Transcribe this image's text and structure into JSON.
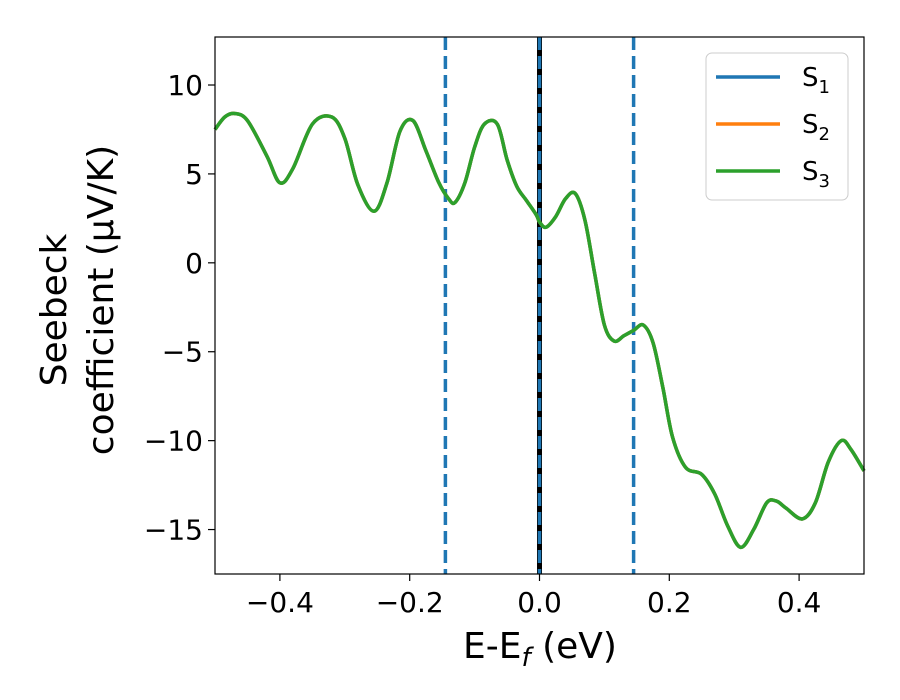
{
  "chart_data": {
    "type": "line",
    "title": "",
    "xlabel_main": "E-E",
    "xlabel_sub": "f",
    "xlabel_unit": " (eV)",
    "ylabel_line1": "Seebeck",
    "ylabel_line2": "coefficient  (μV/K)",
    "xlim": [
      -0.5,
      0.5
    ],
    "ylim": [
      -17.5,
      12.7
    ],
    "x_ticks": [
      -0.4,
      -0.2,
      0.0,
      0.2,
      0.4
    ],
    "x_tick_labels": [
      "−0.4",
      "−0.2",
      "0.0",
      "0.2",
      "0.4"
    ],
    "y_ticks": [
      -15,
      -10,
      -5,
      0,
      5,
      10
    ],
    "y_tick_labels": [
      "−15",
      "−10",
      "−5",
      "0",
      "5",
      "10"
    ],
    "grid": false,
    "legend_position": "top-right",
    "series": [
      {
        "name": "S",
        "subscript": "1",
        "color": "#1f77b4",
        "x": [
          -0.5,
          -0.485,
          -0.47,
          -0.45,
          -0.42,
          -0.4,
          -0.38,
          -0.35,
          -0.32,
          -0.3,
          -0.28,
          -0.255,
          -0.235,
          -0.215,
          -0.195,
          -0.175,
          -0.155,
          -0.14,
          -0.13,
          -0.115,
          -0.1,
          -0.085,
          -0.065,
          -0.05,
          -0.035,
          -0.02,
          -0.005,
          0.0,
          0.01,
          0.025,
          0.04,
          0.055,
          0.07,
          0.085,
          0.1,
          0.115,
          0.13,
          0.145,
          0.16,
          0.175,
          0.19,
          0.205,
          0.225,
          0.25,
          0.27,
          0.29,
          0.31,
          0.33,
          0.35,
          0.365,
          0.38,
          0.405,
          0.425,
          0.445,
          0.465,
          0.48,
          0.5
        ],
        "y": [
          7.5,
          8.2,
          8.4,
          8.0,
          6.0,
          4.5,
          5.3,
          7.8,
          8.2,
          7.0,
          4.4,
          2.9,
          4.5,
          7.4,
          8.0,
          6.3,
          4.5,
          3.6,
          3.4,
          4.5,
          6.5,
          7.8,
          7.8,
          5.8,
          4.3,
          3.5,
          2.7,
          2.3,
          2.0,
          2.6,
          3.6,
          3.9,
          2.4,
          -0.6,
          -3.5,
          -4.4,
          -4.1,
          -3.8,
          -3.5,
          -4.5,
          -7.0,
          -9.8,
          -11.5,
          -11.9,
          -13.0,
          -14.8,
          -16.0,
          -15.0,
          -13.5,
          -13.4,
          -13.8,
          -14.4,
          -13.5,
          -11.2,
          -10.0,
          -10.5,
          -11.7
        ]
      },
      {
        "name": "S",
        "subscript": "2",
        "color": "#ff7f0e",
        "x": [
          -0.5,
          -0.485,
          -0.47,
          -0.45,
          -0.42,
          -0.4,
          -0.38,
          -0.35,
          -0.32,
          -0.3,
          -0.28,
          -0.255,
          -0.235,
          -0.215,
          -0.195,
          -0.175,
          -0.155,
          -0.14,
          -0.13,
          -0.115,
          -0.1,
          -0.085,
          -0.065,
          -0.05,
          -0.035,
          -0.02,
          -0.005,
          0.0,
          0.01,
          0.025,
          0.04,
          0.055,
          0.07,
          0.085,
          0.1,
          0.115,
          0.13,
          0.145,
          0.16,
          0.175,
          0.19,
          0.205,
          0.225,
          0.25,
          0.27,
          0.29,
          0.31,
          0.33,
          0.35,
          0.365,
          0.38,
          0.405,
          0.425,
          0.445,
          0.465,
          0.48,
          0.5
        ],
        "y": [
          7.5,
          8.2,
          8.4,
          8.0,
          6.0,
          4.5,
          5.3,
          7.8,
          8.2,
          7.0,
          4.4,
          2.9,
          4.5,
          7.4,
          8.0,
          6.3,
          4.5,
          3.6,
          3.4,
          4.5,
          6.5,
          7.8,
          7.8,
          5.8,
          4.3,
          3.5,
          2.7,
          2.3,
          2.0,
          2.6,
          3.6,
          3.9,
          2.4,
          -0.6,
          -3.5,
          -4.4,
          -4.1,
          -3.8,
          -3.5,
          -4.5,
          -7.0,
          -9.8,
          -11.5,
          -11.9,
          -13.0,
          -14.8,
          -16.0,
          -15.0,
          -13.5,
          -13.4,
          -13.8,
          -14.4,
          -13.5,
          -11.2,
          -10.0,
          -10.5,
          -11.7
        ]
      },
      {
        "name": "S",
        "subscript": "3",
        "color": "#2ca02c",
        "x": [
          -0.5,
          -0.485,
          -0.47,
          -0.45,
          -0.42,
          -0.4,
          -0.38,
          -0.35,
          -0.32,
          -0.3,
          -0.28,
          -0.255,
          -0.235,
          -0.215,
          -0.195,
          -0.175,
          -0.155,
          -0.14,
          -0.13,
          -0.115,
          -0.1,
          -0.085,
          -0.065,
          -0.05,
          -0.035,
          -0.02,
          -0.005,
          0.0,
          0.01,
          0.025,
          0.04,
          0.055,
          0.07,
          0.085,
          0.1,
          0.115,
          0.13,
          0.145,
          0.16,
          0.175,
          0.19,
          0.205,
          0.225,
          0.25,
          0.27,
          0.29,
          0.31,
          0.33,
          0.35,
          0.365,
          0.38,
          0.405,
          0.425,
          0.445,
          0.465,
          0.48,
          0.5
        ],
        "y": [
          7.5,
          8.2,
          8.4,
          8.0,
          6.0,
          4.5,
          5.3,
          7.8,
          8.2,
          7.0,
          4.4,
          2.9,
          4.5,
          7.4,
          8.0,
          6.3,
          4.5,
          3.6,
          3.4,
          4.5,
          6.5,
          7.8,
          7.8,
          5.8,
          4.3,
          3.5,
          2.7,
          2.3,
          2.0,
          2.6,
          3.6,
          3.9,
          2.4,
          -0.6,
          -3.5,
          -4.4,
          -4.1,
          -3.8,
          -3.5,
          -4.5,
          -7.0,
          -9.8,
          -11.5,
          -11.9,
          -13.0,
          -14.8,
          -16.0,
          -15.0,
          -13.5,
          -13.4,
          -13.8,
          -14.4,
          -13.5,
          -11.2,
          -10.0,
          -10.5,
          -11.7
        ]
      }
    ],
    "vertical_lines": [
      {
        "x": -0.145,
        "color": "#1f77b4",
        "style": "dashed"
      },
      {
        "x": 0.0,
        "color": "#000000",
        "style": "solid"
      },
      {
        "x": 0.0,
        "color": "#1f77b4",
        "style": "dashed"
      },
      {
        "x": 0.145,
        "color": "#1f77b4",
        "style": "dashed"
      }
    ]
  }
}
